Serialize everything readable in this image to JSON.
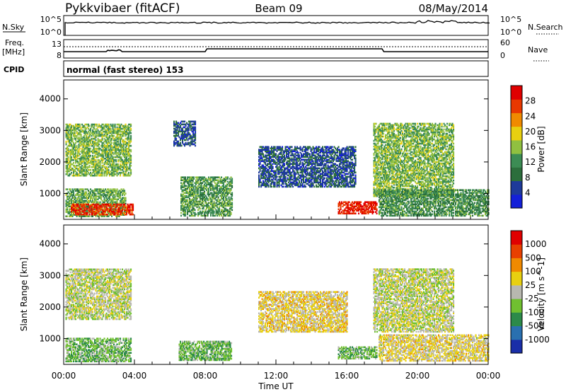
{
  "header": {
    "title": "Pykkvibaer (fitACF)",
    "beam": "Beam 09",
    "date": "08/May/2014"
  },
  "nsky_panel": {
    "left_label": "N.Sky",
    "left_ticks": [
      "10^5",
      "10^0"
    ],
    "right_ticks": [
      "10^5",
      "10^0"
    ],
    "right_label": "N.Search"
  },
  "freq_panel": {
    "left_label_line1": "Freq.",
    "left_label_line2": "[MHz]",
    "left_ticks": [
      "13",
      "8"
    ],
    "right_ticks": [
      "60",
      "0"
    ],
    "right_label": "Nave"
  },
  "cpid": {
    "label": "CPID",
    "mode": "normal (fast stereo) 153"
  },
  "chart_data": [
    {
      "type": "heatmap",
      "name": "power",
      "ylabel": "Slant Range [km]",
      "xlabel": "Time UT",
      "x_ticks": [
        "00:00",
        "04:00",
        "08:00",
        "12:00",
        "16:00",
        "20:00",
        "00:00"
      ],
      "xlim_hours": [
        0,
        24
      ],
      "y_ticks": [
        "1000",
        "2000",
        "3000",
        "4000"
      ],
      "ylim": [
        180,
        4600
      ],
      "colorbar": {
        "label": "Power [dB]",
        "ticks": [
          "4",
          "8",
          "12",
          "16",
          "20",
          "24",
          "28"
        ],
        "range": [
          0,
          30
        ],
        "colors": [
          "#1420d8",
          "#1e3a9a",
          "#2c6e3c",
          "#3c8c54",
          "#90c040",
          "#e8d010",
          "#f08a00",
          "#e83800",
          "#e00000"
        ]
      },
      "regions": [
        {
          "t0": 0.1,
          "t1": 3.8,
          "r0": 1550,
          "r1": 3200,
          "level": 14
        },
        {
          "t0": 0.1,
          "t1": 3.5,
          "r0": 260,
          "r1": 1150,
          "level": 13
        },
        {
          "t0": 0.4,
          "t1": 3.9,
          "r0": 320,
          "r1": 650,
          "level": 26
        },
        {
          "t0": 6.2,
          "t1": 7.4,
          "r0": 2500,
          "r1": 3300,
          "level": 6
        },
        {
          "t0": 6.6,
          "t1": 9.5,
          "r0": 280,
          "r1": 1500,
          "level": 12
        },
        {
          "t0": 11.0,
          "t1": 16.5,
          "r0": 1200,
          "r1": 2500,
          "level": 6
        },
        {
          "t0": 15.5,
          "t1": 17.7,
          "r0": 350,
          "r1": 750,
          "level": 27
        },
        {
          "t0": 17.5,
          "t1": 22.0,
          "r0": 900,
          "r1": 3200,
          "level": 14
        },
        {
          "t0": 17.8,
          "t1": 24.0,
          "r0": 280,
          "r1": 1100,
          "level": 11
        }
      ]
    },
    {
      "type": "heatmap",
      "name": "velocity",
      "ylabel": "Slant Range [km]",
      "xlabel": "Time UT",
      "x_ticks": [
        "00:00",
        "04:00",
        "08:00",
        "12:00",
        "16:00",
        "20:00",
        "00:00"
      ],
      "xlim_hours": [
        0,
        24
      ],
      "y_ticks": [
        "1000",
        "2000",
        "3000",
        "4000"
      ],
      "ylim": [
        180,
        4600
      ],
      "colorbar": {
        "label": "Velocity [m s^-1]",
        "ticks": [
          "1000",
          "500",
          "100",
          "25",
          "-25",
          "-100",
          "-500",
          "-1000"
        ],
        "range": [
          -1200,
          1200
        ],
        "colors": [
          "#1a2ea8",
          "#2a70b0",
          "#2c8a4a",
          "#70c030",
          "#b8b8b0",
          "#e8d010",
          "#f08a00",
          "#e84000",
          "#e00000"
        ]
      },
      "regions": [
        {
          "t0": 0.1,
          "t1": 3.8,
          "r0": 1600,
          "r1": 3200,
          "level": 0
        },
        {
          "t0": 0.1,
          "t1": 3.8,
          "r0": 260,
          "r1": 1000,
          "level": -300
        },
        {
          "t0": 6.5,
          "t1": 9.5,
          "r0": 300,
          "r1": 900,
          "level": -300
        },
        {
          "t0": 11.0,
          "t1": 16.0,
          "r0": 1200,
          "r1": 2500,
          "level": 200
        },
        {
          "t0": 15.5,
          "t1": 17.7,
          "r0": 350,
          "r1": 750,
          "level": -300
        },
        {
          "t0": 17.5,
          "t1": 22.0,
          "r0": 1200,
          "r1": 3200,
          "level": 0
        },
        {
          "t0": 17.8,
          "t1": 24.0,
          "r0": 280,
          "r1": 1100,
          "level": 150
        }
      ]
    }
  ]
}
